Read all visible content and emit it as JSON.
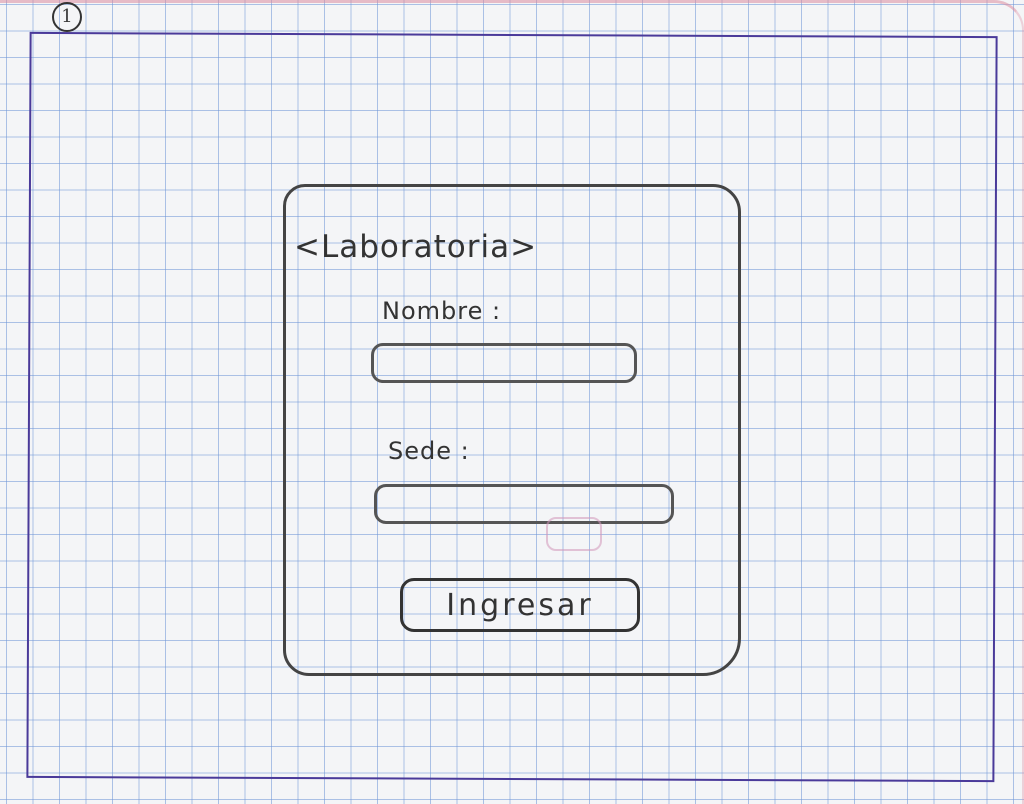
{
  "sketch": {
    "page_number": "1"
  },
  "login": {
    "brand_title": "<Laboratoria>",
    "name_label": "Nombre :",
    "name_value": "",
    "site_label": "Sede :",
    "site_value": "",
    "submit_label": "Ingresar"
  },
  "colors": {
    "grid_line": "#6e96d7",
    "frame_border": "#4a3a9a",
    "pencil": "#333333",
    "paper": "#f4f5f7"
  }
}
